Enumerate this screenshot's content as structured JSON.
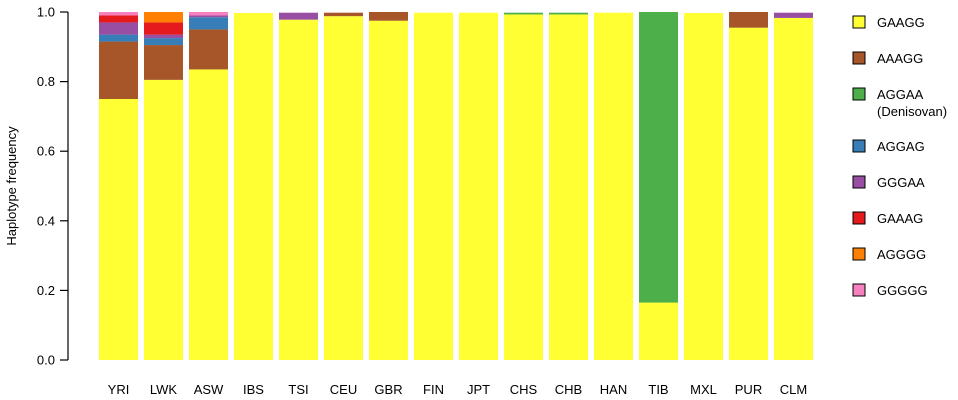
{
  "chart_data": {
    "type": "bar",
    "stacked": true,
    "title": "",
    "xlabel": "",
    "ylabel": "Haplotype frequency",
    "ylim": [
      0,
      1
    ],
    "yticks": [
      "0.0",
      "0.2",
      "0.4",
      "0.6",
      "0.8",
      "1.0"
    ],
    "legend_position": "right",
    "categories": [
      "YRI",
      "LWK",
      "ASW",
      "IBS",
      "TSI",
      "CEU",
      "GBR",
      "FIN",
      "JPT",
      "CHS",
      "CHB",
      "HAN",
      "TIB",
      "MXL",
      "PUR",
      "CLM"
    ],
    "series": [
      {
        "name": "GAAGG",
        "legend_lines": [
          "GAAGG"
        ],
        "color": "#ffff33",
        "values": [
          0.75,
          0.805,
          0.835,
          0.997,
          0.978,
          0.988,
          0.975,
          0.998,
          0.998,
          0.993,
          0.993,
          0.998,
          0.165,
          0.997,
          0.955,
          0.983
        ]
      },
      {
        "name": "AAAGG",
        "legend_lines": [
          "AAAGG"
        ],
        "color": "#a65628",
        "values": [
          0.165,
          0.1,
          0.115,
          0.0,
          0.0,
          0.01,
          0.025,
          0.0,
          0.0,
          0.0,
          0.0,
          0.0,
          0.0,
          0.0,
          0.045,
          0.0
        ]
      },
      {
        "name": "AGGAA (Denisovan)",
        "legend_lines": [
          "AGGAA",
          "(Denisovan)"
        ],
        "color": "#4daf4a",
        "values": [
          0.0,
          0.0,
          0.0,
          0.0,
          0.0,
          0.0,
          0.0,
          0.0,
          0.0,
          0.005,
          0.005,
          0.0,
          0.835,
          0.0,
          0.0,
          0.0
        ]
      },
      {
        "name": "AGGAG",
        "legend_lines": [
          "AGGAG"
        ],
        "color": "#377eb8",
        "values": [
          0.02,
          0.02,
          0.035,
          0.0,
          0.0,
          0.0,
          0.0,
          0.0,
          0.0,
          0.0,
          0.0,
          0.0,
          0.0,
          0.0,
          0.0,
          0.0
        ]
      },
      {
        "name": "GGGAA",
        "legend_lines": [
          "GGGAA"
        ],
        "color": "#984ea3",
        "values": [
          0.035,
          0.01,
          0.005,
          0.0,
          0.02,
          0.0,
          0.0,
          0.0,
          0.0,
          0.0,
          0.0,
          0.0,
          0.0,
          0.0,
          0.0,
          0.015
        ]
      },
      {
        "name": "GAAAG",
        "legend_lines": [
          "GAAAG"
        ],
        "color": "#e41a1c",
        "values": [
          0.02,
          0.035,
          0.0,
          0.0,
          0.0,
          0.0,
          0.0,
          0.0,
          0.0,
          0.0,
          0.0,
          0.0,
          0.0,
          0.0,
          0.0,
          0.0
        ]
      },
      {
        "name": "AGGGG",
        "legend_lines": [
          "AGGGG"
        ],
        "color": "#ff7f00",
        "values": [
          0.0,
          0.03,
          0.0,
          0.0,
          0.0,
          0.0,
          0.0,
          0.0,
          0.0,
          0.0,
          0.0,
          0.0,
          0.0,
          0.0,
          0.0,
          0.0
        ]
      },
      {
        "name": "GGGGG",
        "legend_lines": [
          "GGGGG"
        ],
        "color": "#f781bf",
        "values": [
          0.01,
          0.0,
          0.01,
          0.0,
          0.0,
          0.0,
          0.0,
          0.0,
          0.0,
          0.0,
          0.0,
          0.0,
          0.0,
          0.0,
          0.0,
          0.0
        ]
      }
    ]
  }
}
